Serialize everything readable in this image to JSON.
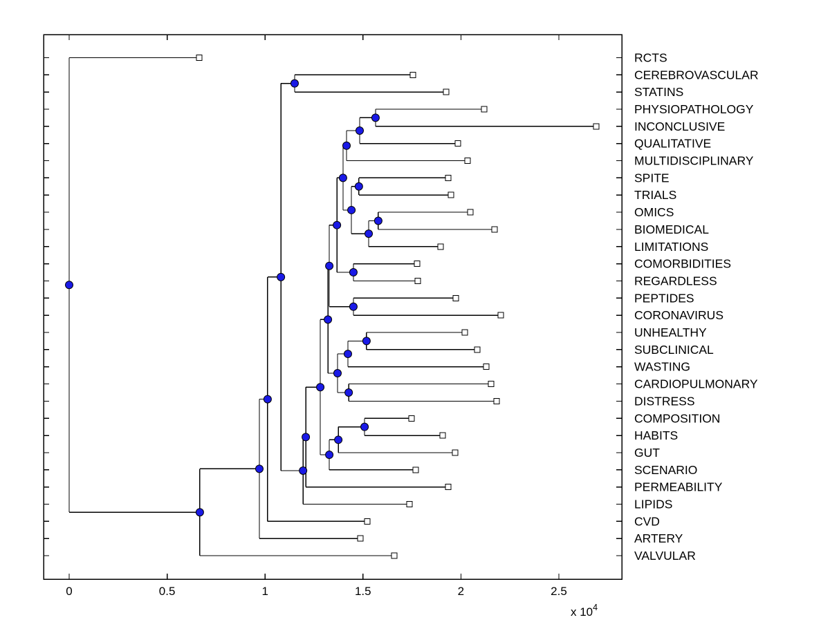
{
  "figure": {
    "background": "#ffffff"
  },
  "chart_data": {
    "type": "dendrogram",
    "orientation": "horizontal_tree_leaves_right",
    "title": "",
    "xlabel": "",
    "x_axis": {
      "tick_labels": [
        "0",
        "0.5",
        "1",
        "1.5",
        "2",
        "2.5"
      ],
      "tick_values": [
        0,
        0.5,
        1,
        1.5,
        2,
        2.5
      ],
      "scale_label_base": "x 10",
      "scale_label_exponent": "4",
      "unit_multiplier": 10000,
      "xlim": [
        -0.13,
        2.82
      ],
      "grid": false
    },
    "styles": {
      "line_color": "#000000",
      "node_marker_fill": "#1a1ae6",
      "node_marker_edge": "#000000",
      "leaf_marker_fill": "#ffffff",
      "leaf_marker_edge": "#000000"
    },
    "leaves": [
      {
        "id": "L1",
        "label": "RCTS",
        "tip": 0.664
      },
      {
        "id": "L2",
        "label": "CEREBROVASCULAR",
        "tip": 1.755
      },
      {
        "id": "L3",
        "label": "STATINS",
        "tip": 1.924
      },
      {
        "id": "L4",
        "label": "PHYSIOPATHOLOGY",
        "tip": 2.119
      },
      {
        "id": "L5",
        "label": "INCONCLUSIVE",
        "tip": 2.691
      },
      {
        "id": "L6",
        "label": "QUALITATIVE",
        "tip": 1.984
      },
      {
        "id": "L7",
        "label": "MULTIDISCIPLINARY",
        "tip": 2.034
      },
      {
        "id": "L8",
        "label": "SPITE",
        "tip": 1.935
      },
      {
        "id": "L9",
        "label": "TRIALS",
        "tip": 1.949
      },
      {
        "id": "L10",
        "label": "OMICS",
        "tip": 2.048
      },
      {
        "id": "L11",
        "label": "BIOMEDICAL",
        "tip": 2.172
      },
      {
        "id": "L12",
        "label": "LIMITATIONS",
        "tip": 1.896
      },
      {
        "id": "L13",
        "label": "COMORBIDITIES",
        "tip": 1.776
      },
      {
        "id": "L14",
        "label": "REGARDLESS",
        "tip": 1.78
      },
      {
        "id": "L15",
        "label": "PEPTIDES",
        "tip": 1.974
      },
      {
        "id": "L16",
        "label": "CORONAVIRUS",
        "tip": 2.203
      },
      {
        "id": "L17",
        "label": "UNHEALTHY",
        "tip": 2.02
      },
      {
        "id": "L18",
        "label": "SUBCLINICAL",
        "tip": 2.083
      },
      {
        "id": "L19",
        "label": "WASTING",
        "tip": 2.129
      },
      {
        "id": "L20",
        "label": "CARDIOPULMONARY",
        "tip": 2.154
      },
      {
        "id": "L21",
        "label": "DISTRESS",
        "tip": 2.182
      },
      {
        "id": "L22",
        "label": "COMPOSITION",
        "tip": 1.748
      },
      {
        "id": "L23",
        "label": "HABITS",
        "tip": 1.907
      },
      {
        "id": "L24",
        "label": "GUT",
        "tip": 1.97
      },
      {
        "id": "L25",
        "label": "SCENARIO",
        "tip": 1.769
      },
      {
        "id": "L26",
        "label": "PERMEABILITY",
        "tip": 1.935
      },
      {
        "id": "L27",
        "label": "LIPIDS",
        "tip": 1.737
      },
      {
        "id": "L28",
        "label": "CVD",
        "tip": 1.522
      },
      {
        "id": "L29",
        "label": "ARTERY",
        "tip": 1.487
      },
      {
        "id": "L30",
        "label": "VALVULAR",
        "tip": 1.66
      }
    ],
    "nodes": [
      {
        "id": "nA",
        "x": 1.151,
        "children": [
          "L2",
          "L3"
        ]
      },
      {
        "id": "nB",
        "x": 1.564,
        "children": [
          "L4",
          "L5"
        ]
      },
      {
        "id": "nC",
        "x": 1.483,
        "children": [
          "nB",
          "L6"
        ]
      },
      {
        "id": "nD",
        "x": 1.416,
        "children": [
          "nC",
          "L7"
        ]
      },
      {
        "id": "nE",
        "x": 1.479,
        "children": [
          "L8",
          "L9"
        ]
      },
      {
        "id": "nF",
        "x": 1.578,
        "children": [
          "L10",
          "L11"
        ]
      },
      {
        "id": "nG",
        "x": 1.529,
        "children": [
          "nF",
          "L12"
        ]
      },
      {
        "id": "nH",
        "x": 1.441,
        "children": [
          "nE",
          "nG"
        ]
      },
      {
        "id": "nI",
        "x": 1.398,
        "children": [
          "nD",
          "nH"
        ]
      },
      {
        "id": "nJ",
        "x": 1.451,
        "children": [
          "L13",
          "L14"
        ]
      },
      {
        "id": "nK",
        "x": 1.367,
        "children": [
          "nI",
          "nJ"
        ]
      },
      {
        "id": "nL",
        "x": 1.451,
        "children": [
          "L15",
          "L16"
        ]
      },
      {
        "id": "nM",
        "x": 1.328,
        "children": [
          "nK",
          "nL"
        ]
      },
      {
        "id": "nN",
        "x": 1.518,
        "children": [
          "L17",
          "L18"
        ]
      },
      {
        "id": "nO",
        "x": 1.423,
        "children": [
          "nN",
          "L19"
        ]
      },
      {
        "id": "nP",
        "x": 1.427,
        "children": [
          "L20",
          "L21"
        ]
      },
      {
        "id": "nQ",
        "x": 1.37,
        "children": [
          "nO",
          "nP"
        ]
      },
      {
        "id": "nR",
        "x": 1.321,
        "children": [
          "nM",
          "nQ"
        ]
      },
      {
        "id": "nS",
        "x": 1.508,
        "children": [
          "L22",
          "L23"
        ]
      },
      {
        "id": "nT",
        "x": 1.374,
        "children": [
          "nS",
          "L24"
        ]
      },
      {
        "id": "nU",
        "x": 1.328,
        "children": [
          "nT",
          "L25"
        ]
      },
      {
        "id": "nV",
        "x": 1.282,
        "children": [
          "nR",
          "nU"
        ]
      },
      {
        "id": "nW",
        "x": 1.208,
        "children": [
          "nV",
          "L26"
        ]
      },
      {
        "id": "nX",
        "x": 1.194,
        "children": [
          "nW",
          "L27"
        ]
      },
      {
        "id": "nY",
        "x": 1.081,
        "children": [
          "nA",
          "nX"
        ]
      },
      {
        "id": "nZ",
        "x": 1.013,
        "children": [
          "nY",
          "L28"
        ]
      },
      {
        "id": "nAA",
        "x": 0.971,
        "children": [
          "nZ",
          "L29"
        ]
      },
      {
        "id": "nBB",
        "x": 0.667,
        "children": [
          "nAA",
          "L30"
        ]
      },
      {
        "id": "root",
        "x": 0.0,
        "children": [
          "L1",
          "nBB"
        ]
      }
    ]
  }
}
